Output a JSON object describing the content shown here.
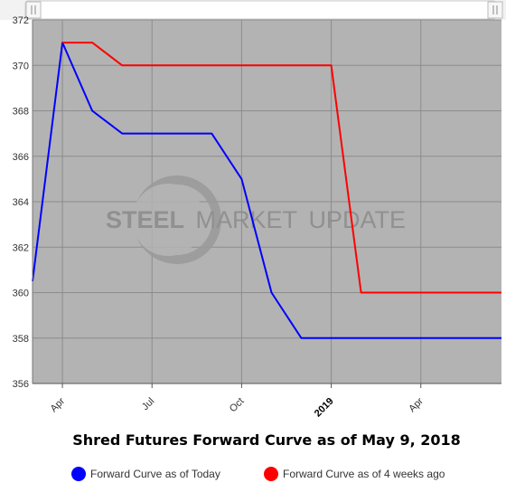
{
  "chart_data": {
    "type": "line",
    "title": "Shred Futures Forward Curve as of May 9, 2018",
    "xlabel": "",
    "ylabel": "",
    "ylim": [
      356,
      372
    ],
    "y_ticks": [
      "356",
      "358",
      "360",
      "362",
      "364",
      "366",
      "368",
      "370",
      "372"
    ],
    "x_ticks": [
      {
        "label": "Apr",
        "month": 1,
        "bold": false
      },
      {
        "label": "Jul",
        "month": 4,
        "bold": false
      },
      {
        "label": "Oct",
        "month": 7,
        "bold": false
      },
      {
        "label": "2019",
        "month": 10,
        "bold": true
      },
      {
        "label": "Apr",
        "month": 13,
        "bold": false
      }
    ],
    "x_range_months": [
      0,
      15.7
    ],
    "x_note": "x values are months since Mar 2018",
    "grid": true,
    "plot_background": "#b3b3b3",
    "legend_position": "bottom",
    "series": [
      {
        "name": "Forward Curve as of Today",
        "color": "#0000ff",
        "points": [
          [
            0,
            360.5
          ],
          [
            1,
            371
          ],
          [
            2,
            368
          ],
          [
            3,
            367
          ],
          [
            6,
            367
          ],
          [
            7,
            365
          ],
          [
            8,
            360
          ],
          [
            9,
            358
          ],
          [
            15.7,
            358
          ]
        ]
      },
      {
        "name": "Forward Curve as of 4 weeks ago",
        "color": "#ff0000",
        "points": [
          [
            1,
            371
          ],
          [
            2,
            371
          ],
          [
            3,
            370
          ],
          [
            10,
            370
          ],
          [
            11,
            360
          ],
          [
            15.7,
            360
          ]
        ]
      }
    ]
  },
  "watermark": {
    "word1": "STEEL",
    "word2": "MARKET",
    "word3": "UPDATE"
  }
}
